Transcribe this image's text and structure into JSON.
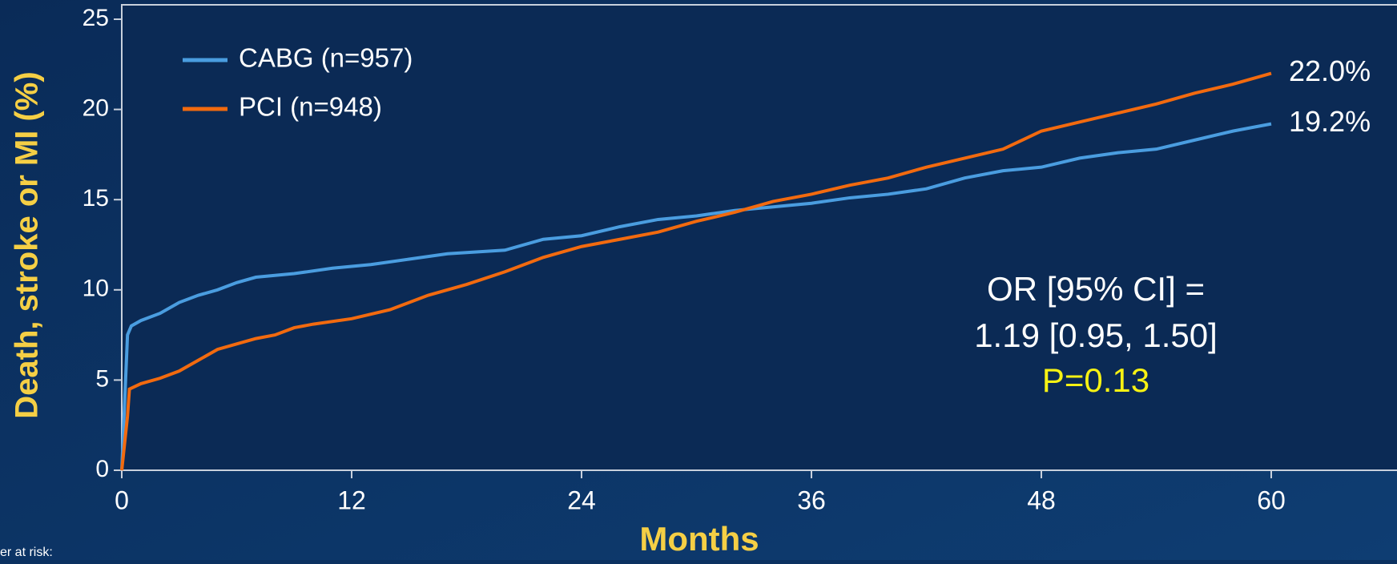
{
  "chart_data": {
    "type": "line",
    "y_label": "Death, stroke or MI (%)",
    "x_label": "Months",
    "xlim": [
      0,
      60
    ],
    "xticks": [
      0,
      12,
      24,
      36,
      48,
      60
    ],
    "ylim": [
      0,
      25
    ],
    "yticks": [
      0,
      5,
      10,
      15,
      20,
      25
    ],
    "legend": "upper left",
    "series": [
      {
        "name": "CABG (n=957)",
        "color": "#4a9de0",
        "end_label": "19.2%",
        "x": [
          0,
          0.2,
          0.3,
          0.5,
          1,
          2,
          3,
          4,
          5,
          6,
          7,
          9,
          11,
          13,
          15,
          17,
          20,
          22,
          24,
          26,
          28,
          30,
          32,
          34,
          36,
          38,
          40,
          42,
          44,
          46,
          48,
          50,
          52,
          54,
          56,
          58,
          60
        ],
        "values": [
          0,
          5,
          7.5,
          8,
          8.3,
          8.7,
          9.3,
          9.7,
          10,
          10.4,
          10.7,
          10.9,
          11.2,
          11.4,
          11.7,
          12,
          12.2,
          12.8,
          13,
          13.5,
          13.9,
          14.1,
          14.4,
          14.6,
          14.8,
          15.1,
          15.3,
          15.6,
          16.2,
          16.6,
          16.8,
          17.3,
          17.6,
          17.8,
          18.3,
          18.8,
          19.2
        ]
      },
      {
        "name": "PCI (n=948)",
        "color": "#f26a0f",
        "end_label": "22.0%",
        "x": [
          0,
          0.3,
          0.4,
          1,
          2,
          3,
          4,
          5,
          6,
          7,
          8,
          9,
          10,
          12,
          14,
          16,
          18,
          20,
          22,
          24,
          26,
          28,
          30,
          32,
          34,
          36,
          38,
          40,
          42,
          44,
          46,
          47,
          48,
          50,
          52,
          54,
          56,
          58,
          60
        ],
        "values": [
          0,
          3,
          4.5,
          4.8,
          5.1,
          5.5,
          6.1,
          6.7,
          7,
          7.3,
          7.5,
          7.9,
          8.1,
          8.4,
          8.9,
          9.7,
          10.3,
          11,
          11.8,
          12.4,
          12.8,
          13.2,
          13.8,
          14.3,
          14.9,
          15.3,
          15.8,
          16.2,
          16.8,
          17.3,
          17.8,
          18.3,
          18.8,
          19.3,
          19.8,
          20.3,
          20.9,
          21.4,
          22
        ]
      }
    ],
    "annotations": [
      "OR [95% CI] =",
      "1.19 [0.95, 1.50]",
      "P=0.13"
    ],
    "footer": "er at risk:"
  }
}
